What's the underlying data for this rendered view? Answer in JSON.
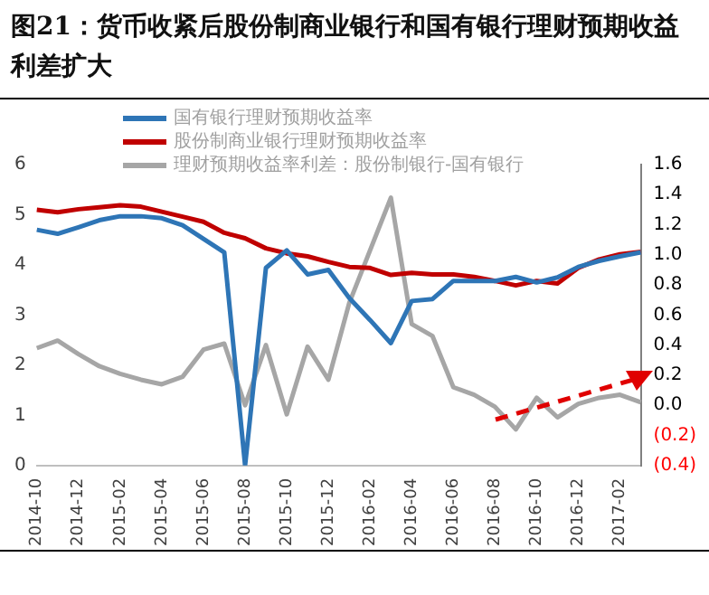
{
  "chart_data": {
    "type": "line",
    "title": "图21：货币收紧后股份制商业银行和国有银行理财预期收益利差扩大",
    "categories": [
      "2014-10",
      null,
      "2014-12",
      null,
      "2015-02",
      null,
      "2015-04",
      null,
      "2015-06",
      null,
      "2015-08",
      null,
      "2015-10",
      null,
      "2015-12",
      null,
      "2016-02",
      null,
      "2016-04",
      null,
      "2016-06",
      null,
      "2016-08",
      null,
      "2016-10",
      null,
      "2016-12",
      null,
      "2017-02",
      null
    ],
    "series": [
      {
        "name": "国有银行理财预期收益率",
        "color": "#2e75b6",
        "values": [
          4.7,
          4.62,
          4.75,
          4.89,
          4.97,
          4.97,
          4.93,
          4.79,
          4.52,
          4.25,
          0,
          3.94,
          4.29,
          3.81,
          3.9,
          3.34,
          2.9,
          2.44,
          3.28,
          3.32,
          3.68,
          3.68,
          3.68,
          3.76,
          3.65,
          3.75,
          3.96,
          4.08,
          4.17,
          4.25
        ]
      },
      {
        "name": "股份制商业银行理财预期收益率",
        "color": "#c00000",
        "values": [
          5.1,
          5.05,
          5.11,
          5.15,
          5.19,
          5.16,
          5.06,
          4.96,
          4.86,
          4.64,
          4.53,
          4.33,
          4.23,
          4.17,
          4.06,
          3.96,
          3.94,
          3.8,
          3.84,
          3.81,
          3.81,
          3.76,
          3.68,
          3.59,
          3.68,
          3.63,
          3.94,
          4.11,
          4.21,
          4.26
        ]
      },
      {
        "name": "理财预期收益率利差：股份制银行-国有银行",
        "color": "#a6a6a6",
        "axis": "y2",
        "values": [
          0.38,
          0.43,
          0.34,
          0.26,
          0.21,
          0.17,
          0.14,
          0.19,
          0.37,
          0.41,
          0.0,
          0.4,
          -0.06,
          0.39,
          0.17,
          0.68,
          1.03,
          1.38,
          0.54,
          0.46,
          0.12,
          0.07,
          -0.01,
          -0.16,
          0.05,
          -0.08,
          0.01,
          0.05,
          0.07,
          0.02
        ]
      }
    ],
    "ylim": [
      0,
      6
    ],
    "yticks": [
      0,
      1,
      2,
      3,
      4,
      5,
      6
    ],
    "y2lim": [
      -0.4,
      1.6
    ],
    "y2ticks": [
      {
        "value": -0.4,
        "label": "(0.4)"
      },
      {
        "value": -0.2,
        "label": "(0.2)"
      },
      "0.0",
      "0.2",
      "0.4",
      "0.6",
      "0.8",
      "1.0",
      "1.2",
      "1.4",
      "1.6"
    ],
    "grid": false,
    "legend": "top",
    "marker": "none",
    "line_style": "solid"
  }
}
